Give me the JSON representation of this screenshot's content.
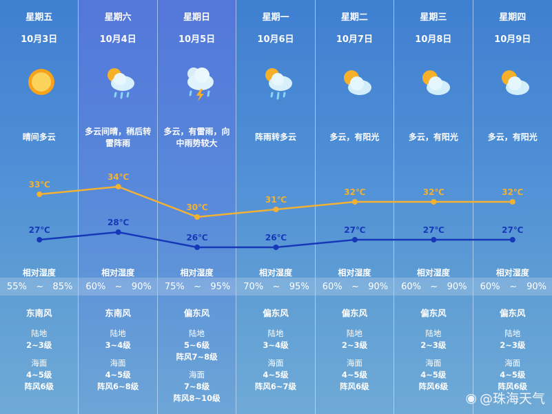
{
  "colors": {
    "high_line": "#f3b233",
    "low_line": "#1638b8",
    "highlight": "#6f6fe0"
  },
  "humidity_label": "相对湿度",
  "land_label": "陆地",
  "sea_label": "海面",
  "days": [
    {
      "day": "星期五",
      "date": "10月3日",
      "icon": "sunny-cloudy-icon",
      "desc": "晴间多云",
      "high": 33,
      "low": 27,
      "high_label": "33℃",
      "low_label": "27℃",
      "hum_min": "55%",
      "hum_sep": "~",
      "hum_max": "85%",
      "wind": "东南风",
      "land": "2~3级",
      "land_gust": "",
      "sea": "4~5级",
      "sea_gust": "阵风6级",
      "highlight": false
    },
    {
      "day": "星期六",
      "date": "10月4日",
      "icon": "cloudy-rain-icon",
      "desc": "多云间晴，稍后转雷阵雨",
      "high": 34,
      "low": 28,
      "high_label": "34℃",
      "low_label": "28℃",
      "hum_min": "60%",
      "hum_sep": "~",
      "hum_max": "90%",
      "wind": "东南风",
      "land": "3~4级",
      "land_gust": "",
      "sea": "4~5级",
      "sea_gust": "阵风6~8级",
      "highlight": true
    },
    {
      "day": "星期日",
      "date": "10月5日",
      "icon": "thunderstorm-icon",
      "desc": "多云，有雷雨，向中雨势较大",
      "high": 30,
      "low": 26,
      "high_label": "30℃",
      "low_label": "26℃",
      "hum_min": "75%",
      "hum_sep": "~",
      "hum_max": "95%",
      "wind": "偏东风",
      "land": "5~6级",
      "land_gust": "阵风7~8级",
      "sea": "7~8级",
      "sea_gust": "阵风8~10级",
      "highlight": true
    },
    {
      "day": "星期一",
      "date": "10月6日",
      "icon": "shower-icon",
      "desc": "阵雨转多云",
      "high": 31,
      "low": 26,
      "high_label": "31℃",
      "low_label": "26℃",
      "hum_min": "70%",
      "hum_sep": "~",
      "hum_max": "95%",
      "wind": "偏东风",
      "land": "3~4级",
      "land_gust": "",
      "sea": "4~5级",
      "sea_gust": "阵风6~7级",
      "highlight": false
    },
    {
      "day": "星期二",
      "date": "10月7日",
      "icon": "partly-cloudy-icon",
      "desc": "多云，有阳光",
      "high": 32,
      "low": 27,
      "high_label": "32℃",
      "low_label": "27℃",
      "hum_min": "60%",
      "hum_sep": "~",
      "hum_max": "90%",
      "wind": "偏东风",
      "land": "2~3级",
      "land_gust": "",
      "sea": "4~5级",
      "sea_gust": "阵风6级",
      "highlight": false
    },
    {
      "day": "星期三",
      "date": "10月8日",
      "icon": "partly-cloudy-icon",
      "desc": "多云，有阳光",
      "high": 32,
      "low": 27,
      "high_label": "32℃",
      "low_label": "27℃",
      "hum_min": "60%",
      "hum_sep": "~",
      "hum_max": "90%",
      "wind": "偏东风",
      "land": "2~3级",
      "land_gust": "",
      "sea": "4~5级",
      "sea_gust": "阵风6级",
      "highlight": false
    },
    {
      "day": "星期四",
      "date": "10月9日",
      "icon": "partly-cloudy-icon",
      "desc": "多云，有阳光",
      "high": 32,
      "low": 27,
      "high_label": "32℃",
      "low_label": "27℃",
      "hum_min": "60%",
      "hum_sep": "~",
      "hum_max": "90%",
      "wind": "偏东风",
      "land": "2~3级",
      "land_gust": "",
      "sea": "4~5级",
      "sea_gust": "阵风6级",
      "highlight": false
    }
  ],
  "watermark": "@珠海天气"
}
